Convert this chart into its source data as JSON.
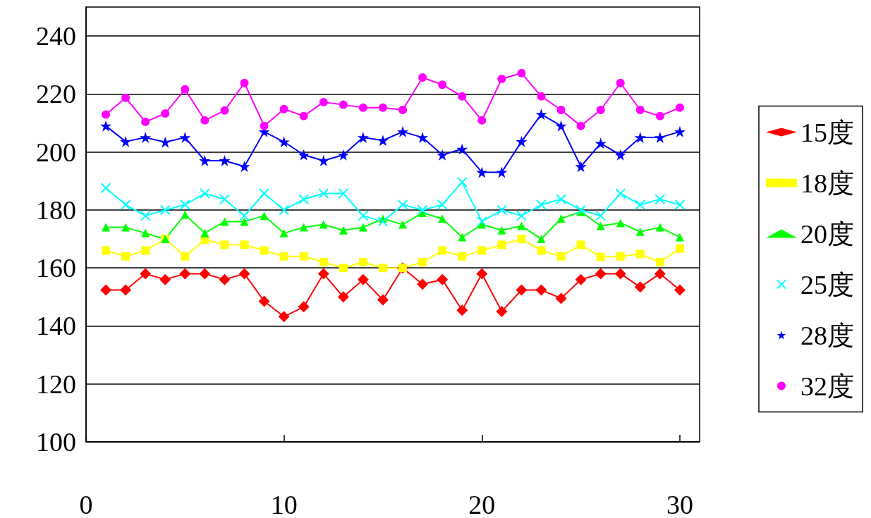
{
  "chart_data": {
    "type": "line",
    "xlim": [
      0,
      31
    ],
    "xticks": [
      0,
      10,
      20,
      30
    ],
    "ylim": [
      100,
      250
    ],
    "yticks": [
      100,
      120,
      140,
      160,
      180,
      200,
      220,
      240
    ],
    "grid": "y",
    "legend": "right",
    "x": [
      1,
      2,
      3,
      4,
      5,
      6,
      7,
      8,
      9,
      10,
      11,
      12,
      13,
      14,
      15,
      16,
      17,
      18,
      19,
      20,
      21,
      22,
      23,
      24,
      25,
      26,
      27,
      28,
      29,
      30
    ],
    "series": [
      {
        "name": "15度",
        "color": "#ff0000",
        "marker": "diamond",
        "values": [
          152.4,
          152.4,
          158,
          156,
          158,
          158,
          156,
          158,
          148.5,
          143.2,
          146.6,
          158,
          150,
          156,
          149,
          160,
          154.4,
          156,
          145.4,
          158,
          145,
          152.4,
          152.4,
          149.5,
          156,
          158,
          158,
          153.4,
          158,
          152.4
        ]
      },
      {
        "name": "18度",
        "color": "#ffff00",
        "marker": "square",
        "values": [
          166,
          164,
          166,
          170,
          164,
          169.7,
          168,
          168,
          166,
          164,
          164,
          162,
          160,
          162,
          160,
          160,
          162,
          166,
          164,
          166,
          168,
          170,
          166,
          164,
          168,
          163.8,
          164,
          164.8,
          162,
          166.7
        ]
      },
      {
        "name": "20度",
        "color": "#00ff00",
        "marker": "triangle",
        "values": [
          174,
          174,
          172,
          170,
          178.4,
          172,
          176,
          176,
          178,
          172,
          174,
          175,
          173,
          174,
          177,
          175,
          179,
          177,
          170.6,
          175,
          173,
          174.5,
          170,
          177,
          179.4,
          174.5,
          175.5,
          172.5,
          174,
          170.6
        ]
      },
      {
        "name": "25度",
        "color": "#00ffff",
        "marker": "cross",
        "values": [
          187.6,
          181.8,
          178,
          180,
          181.8,
          185.7,
          183.7,
          178,
          185.7,
          180,
          183.7,
          185.7,
          185.7,
          178,
          176,
          181.8,
          180,
          181.8,
          189.6,
          176,
          180,
          178,
          181.8,
          183.7,
          180,
          178,
          185.7,
          181.8,
          183.7,
          181.8
        ]
      },
      {
        "name": "28度",
        "color": "#0000ff",
        "marker": "star",
        "values": [
          209,
          203.6,
          205,
          203.4,
          205,
          197,
          197,
          195,
          207,
          203.5,
          199,
          197,
          199,
          205,
          204,
          207,
          205,
          199,
          201,
          193,
          193,
          203.6,
          213,
          209,
          195,
          203,
          199,
          205,
          205,
          207
        ]
      },
      {
        "name": "32度",
        "color": "#ff00ff",
        "marker": "circle",
        "values": [
          212.9,
          218.7,
          210.4,
          213.3,
          221.6,
          210.9,
          214.3,
          223.8,
          209,
          214.8,
          212.4,
          217.2,
          216.3,
          215.3,
          215.3,
          214.5,
          225.7,
          223.2,
          219.2,
          210.9,
          225.2,
          227.2,
          219.2,
          214.5,
          209,
          214.5,
          223.8,
          214.5,
          212.4,
          215.3
        ]
      }
    ]
  }
}
